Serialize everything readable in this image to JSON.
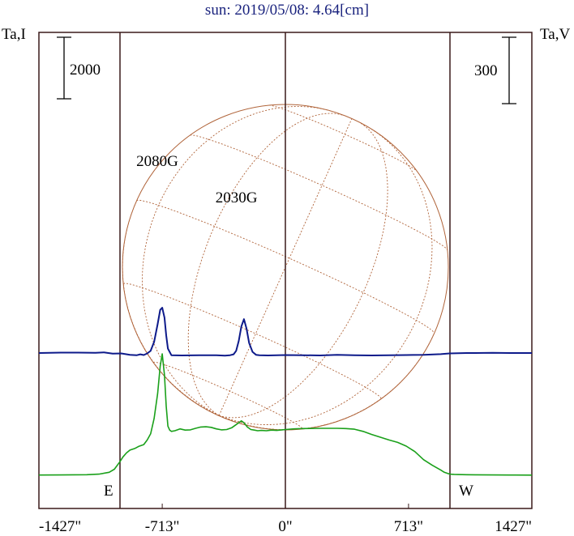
{
  "chart_data": {
    "type": "line",
    "title": "sun: 2019/05/08: 4.64[cm]",
    "left_axis_label": "Ta,I",
    "right_axis_label": "Ta,V",
    "left_scale_bar": "2000",
    "right_scale_bar": "300",
    "x_ticks": [
      {
        "value": -1427,
        "label": "-1427\""
      },
      {
        "value": -713,
        "label": "-713\""
      },
      {
        "value": 0,
        "label": "0\""
      },
      {
        "value": 713,
        "label": "713\""
      },
      {
        "value": 1427,
        "label": "1427\""
      }
    ],
    "xlim": [
      -1427,
      1427
    ],
    "limb_markers": {
      "east": "E",
      "west": "W",
      "east_x": -950,
      "west_x": 950
    },
    "annotations": [
      {
        "text": "2080G",
        "x": -713
      },
      {
        "text": "2030G",
        "x": -255
      }
    ],
    "colors": {
      "stokes_i": "#1aa01a",
      "stokes_v": "#0d1a8a",
      "grid": "#b0643a",
      "frame": "#3a1a1a"
    },
    "series": [
      {
        "key": "stokes_i",
        "x": [
          -1427,
          -1300,
          -1150,
          -1080,
          -1020,
          -990,
          -960,
          -940,
          -920,
          -900,
          -870,
          -850,
          -820,
          -800,
          -780,
          -760,
          -740,
          -725,
          -713,
          -700,
          -690,
          -680,
          -670,
          -660,
          -640,
          -610,
          -580,
          -550,
          -520,
          -490,
          -460,
          -430,
          -400,
          -370,
          -340,
          -310,
          -290,
          -270,
          -255,
          -240,
          -220,
          -200,
          -180,
          -160,
          -140,
          -110,
          -80,
          -50,
          -20,
          0,
          50,
          100,
          200,
          300,
          350,
          400,
          450,
          500,
          550,
          600,
          650,
          700,
          750,
          800,
          850,
          900,
          920,
          940,
          950,
          960,
          970,
          980,
          1000,
          1050,
          1100,
          1200,
          1300,
          1427
        ],
        "y": [
          60,
          62,
          70,
          90,
          150,
          250,
          480,
          650,
          780,
          870,
          930,
          990,
          1050,
          1200,
          1400,
          1900,
          2700,
          3600,
          4000,
          3300,
          2300,
          1650,
          1520,
          1480,
          1500,
          1560,
          1520,
          1530,
          1580,
          1620,
          1630,
          1610,
          1560,
          1530,
          1540,
          1600,
          1680,
          1760,
          1820,
          1760,
          1620,
          1540,
          1520,
          1500,
          1510,
          1500,
          1520,
          1510,
          1530,
          1540,
          1560,
          1570,
          1580,
          1580,
          1570,
          1550,
          1480,
          1380,
          1290,
          1200,
          1120,
          1000,
          820,
          560,
          380,
          220,
          150,
          110,
          95,
          88,
          84,
          80,
          75,
          70,
          68,
          62,
          60,
          58
        ]
      },
      {
        "key": "stokes_v",
        "x": [
          -1427,
          -1300,
          -1200,
          -1100,
          -1050,
          -1000,
          -950,
          -900,
          -860,
          -840,
          -820,
          -800,
          -780,
          -760,
          -740,
          -725,
          -713,
          -700,
          -690,
          -680,
          -660,
          -600,
          -500,
          -400,
          -350,
          -320,
          -300,
          -285,
          -270,
          -255,
          -240,
          -225,
          -210,
          -190,
          -170,
          -150,
          -100,
          0,
          100,
          200,
          300,
          400,
          500,
          600,
          700,
          800,
          900,
          950,
          1000,
          1050,
          1100,
          1200,
          1300,
          1427
        ],
        "y": [
          0,
          2,
          2,
          1,
          3,
          -3,
          -2,
          -8,
          -10,
          -6,
          -9,
          -2,
          10,
          50,
          130,
          195,
          205,
          160,
          80,
          20,
          -10,
          -11,
          -10,
          -10,
          -12,
          -10,
          -6,
          10,
          55,
          120,
          153,
          110,
          45,
          5,
          -8,
          -10,
          -11,
          -9,
          -10,
          -11,
          -8,
          -10,
          -11,
          -10,
          -9,
          -8,
          -5,
          -2,
          -1,
          0,
          0,
          1,
          0,
          0
        ]
      }
    ]
  }
}
